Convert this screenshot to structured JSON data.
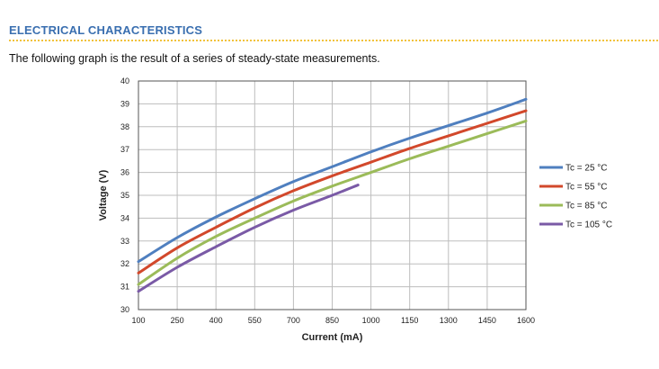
{
  "section": {
    "title": "ELECTRICAL CHARACTERISTICS",
    "intro": "The following graph is the result of a series of steady-state measurements."
  },
  "colors": {
    "header": "#3a6fb0",
    "divider": "#f2c23a"
  },
  "chart_data": {
    "type": "line",
    "title": "",
    "xlabel": "Current (mA)",
    "ylabel": "Voltage (V)",
    "xlim": [
      100,
      1600
    ],
    "ylim": [
      30,
      40
    ],
    "xticks": [
      100,
      250,
      400,
      550,
      700,
      850,
      1000,
      1150,
      1300,
      1450,
      1600
    ],
    "yticks": [
      30,
      31,
      32,
      33,
      34,
      35,
      36,
      37,
      38,
      39,
      40
    ],
    "grid": true,
    "legend_position": "right",
    "series": [
      {
        "name": "Tc = 25 °C",
        "color": "#4f7fbf",
        "x": [
          100,
          250,
          400,
          550,
          700,
          850,
          1000,
          1150,
          1300,
          1450,
          1600
        ],
        "y": [
          32.1,
          33.15,
          34.05,
          34.85,
          35.6,
          36.25,
          36.9,
          37.5,
          38.05,
          38.6,
          39.2
        ]
      },
      {
        "name": "Tc = 55 °C",
        "color": "#d2482b",
        "x": [
          100,
          250,
          400,
          550,
          700,
          850,
          1000,
          1150,
          1300,
          1450,
          1600
        ],
        "y": [
          31.6,
          32.7,
          33.6,
          34.45,
          35.2,
          35.85,
          36.45,
          37.05,
          37.6,
          38.15,
          38.7
        ]
      },
      {
        "name": "Tc = 85 °C",
        "color": "#9bbb59",
        "x": [
          100,
          250,
          400,
          550,
          700,
          850,
          1000,
          1150,
          1300,
          1450,
          1600
        ],
        "y": [
          31.1,
          32.25,
          33.2,
          34.0,
          34.75,
          35.4,
          36.0,
          36.6,
          37.15,
          37.7,
          38.25
        ]
      },
      {
        "name": "Tc = 105 °C",
        "color": "#7a5aa6",
        "x": [
          100,
          250,
          400,
          550,
          700,
          850,
          950
        ],
        "y": [
          30.8,
          31.85,
          32.75,
          33.6,
          34.35,
          35.0,
          35.45
        ]
      }
    ]
  }
}
